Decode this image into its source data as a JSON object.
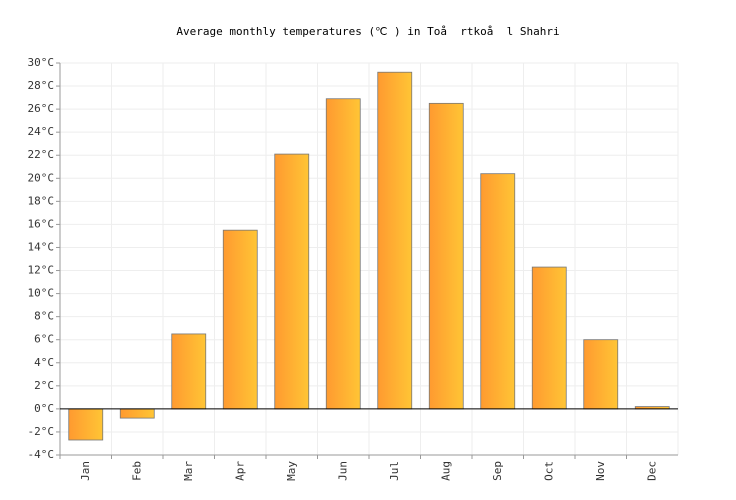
{
  "chart_data": {
    "type": "bar",
    "title": "Average monthly temperatures (℃ ) in Toå  rtkoå  l Shahri",
    "categories": [
      "Jan",
      "Feb",
      "Mar",
      "Apr",
      "May",
      "Jun",
      "Jul",
      "Aug",
      "Sep",
      "Oct",
      "Nov",
      "Dec"
    ],
    "values": [
      -2.7,
      -0.8,
      6.5,
      15.5,
      22.1,
      26.9,
      29.2,
      26.5,
      20.4,
      12.3,
      6.0,
      0.2
    ],
    "color": "#ffaa33",
    "ylim": [
      -4,
      30
    ],
    "yticks": [
      {
        "value": -4,
        "label": "-4°C"
      },
      {
        "value": -2,
        "label": "-2°C"
      },
      {
        "value": 0,
        "label": "0°C"
      },
      {
        "value": 2,
        "label": "2°C"
      },
      {
        "value": 4,
        "label": "4°C"
      },
      {
        "value": 6,
        "label": "6°C"
      },
      {
        "value": 8,
        "label": "8°C"
      },
      {
        "value": 10,
        "label": "10°C"
      },
      {
        "value": 12,
        "label": "12°C"
      },
      {
        "value": 14,
        "label": "14°C"
      },
      {
        "value": 16,
        "label": "16°C"
      },
      {
        "value": 18,
        "label": "18°C"
      },
      {
        "value": 20,
        "label": "20°C"
      },
      {
        "value": 22,
        "label": "22°C"
      },
      {
        "value": 24,
        "label": "24°C"
      },
      {
        "value": 26,
        "label": "26°C"
      },
      {
        "value": 28,
        "label": "28°C"
      },
      {
        "value": 30,
        "label": "30°C"
      }
    ],
    "grid": true
  }
}
